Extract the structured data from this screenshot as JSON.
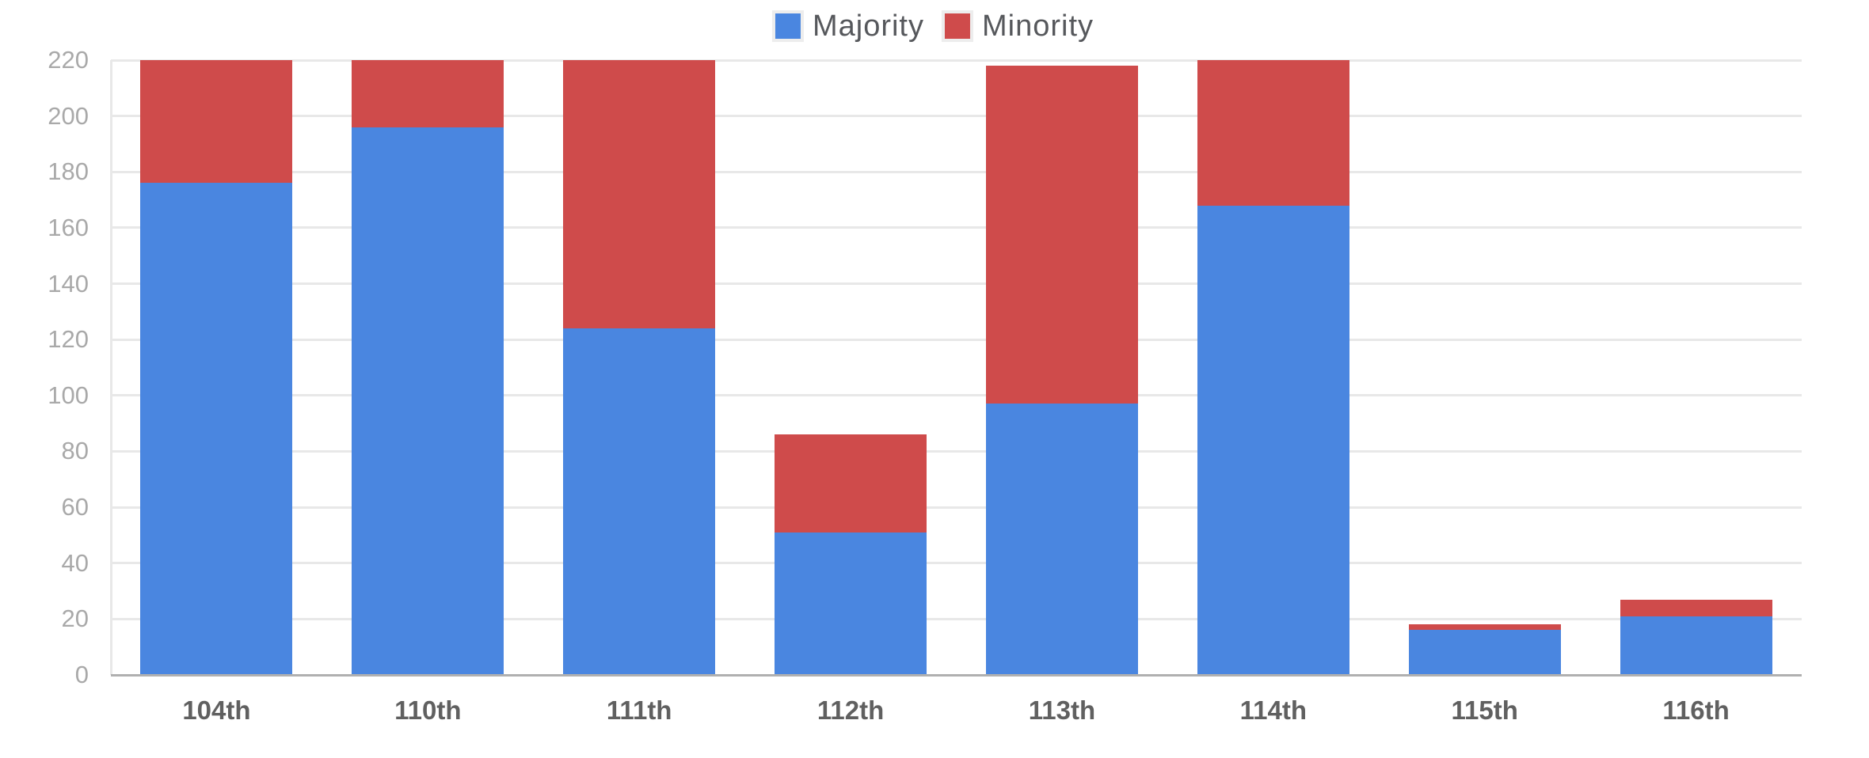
{
  "chart_data": {
    "type": "bar",
    "stacked": true,
    "title": "",
    "xlabel": "",
    "ylabel": "",
    "categories": [
      "104th",
      "110th",
      "111th",
      "112th",
      "113th",
      "114th",
      "115th",
      "116th"
    ],
    "series": [
      {
        "name": "Majority",
        "color": "#4a86e0",
        "values": [
          176,
          196,
          124,
          51,
          97,
          168,
          16,
          21
        ]
      },
      {
        "name": "Minority",
        "color": "#cf4b4b",
        "values": [
          44,
          24,
          96,
          35,
          121,
          52,
          2,
          6
        ]
      }
    ],
    "totals": [
      220,
      220,
      220,
      86,
      218,
      220,
      18,
      27
    ],
    "ylim": [
      0,
      220
    ],
    "ytick_step": 20,
    "y_ticks": [
      "220",
      "200",
      "180",
      "160",
      "140",
      "120",
      "100",
      "80",
      "60",
      "40",
      "20",
      "0"
    ],
    "grid": true,
    "legend_position": "top-center"
  },
  "colors": {
    "majority": "#4a86e0",
    "minority": "#cf4b4b",
    "gridline": "#e8e8e8",
    "zero_axis": "#b0b0b0",
    "y_tick_text": "#a9a9a9",
    "x_tick_text": "#606060",
    "legend_text": "#56585c"
  }
}
